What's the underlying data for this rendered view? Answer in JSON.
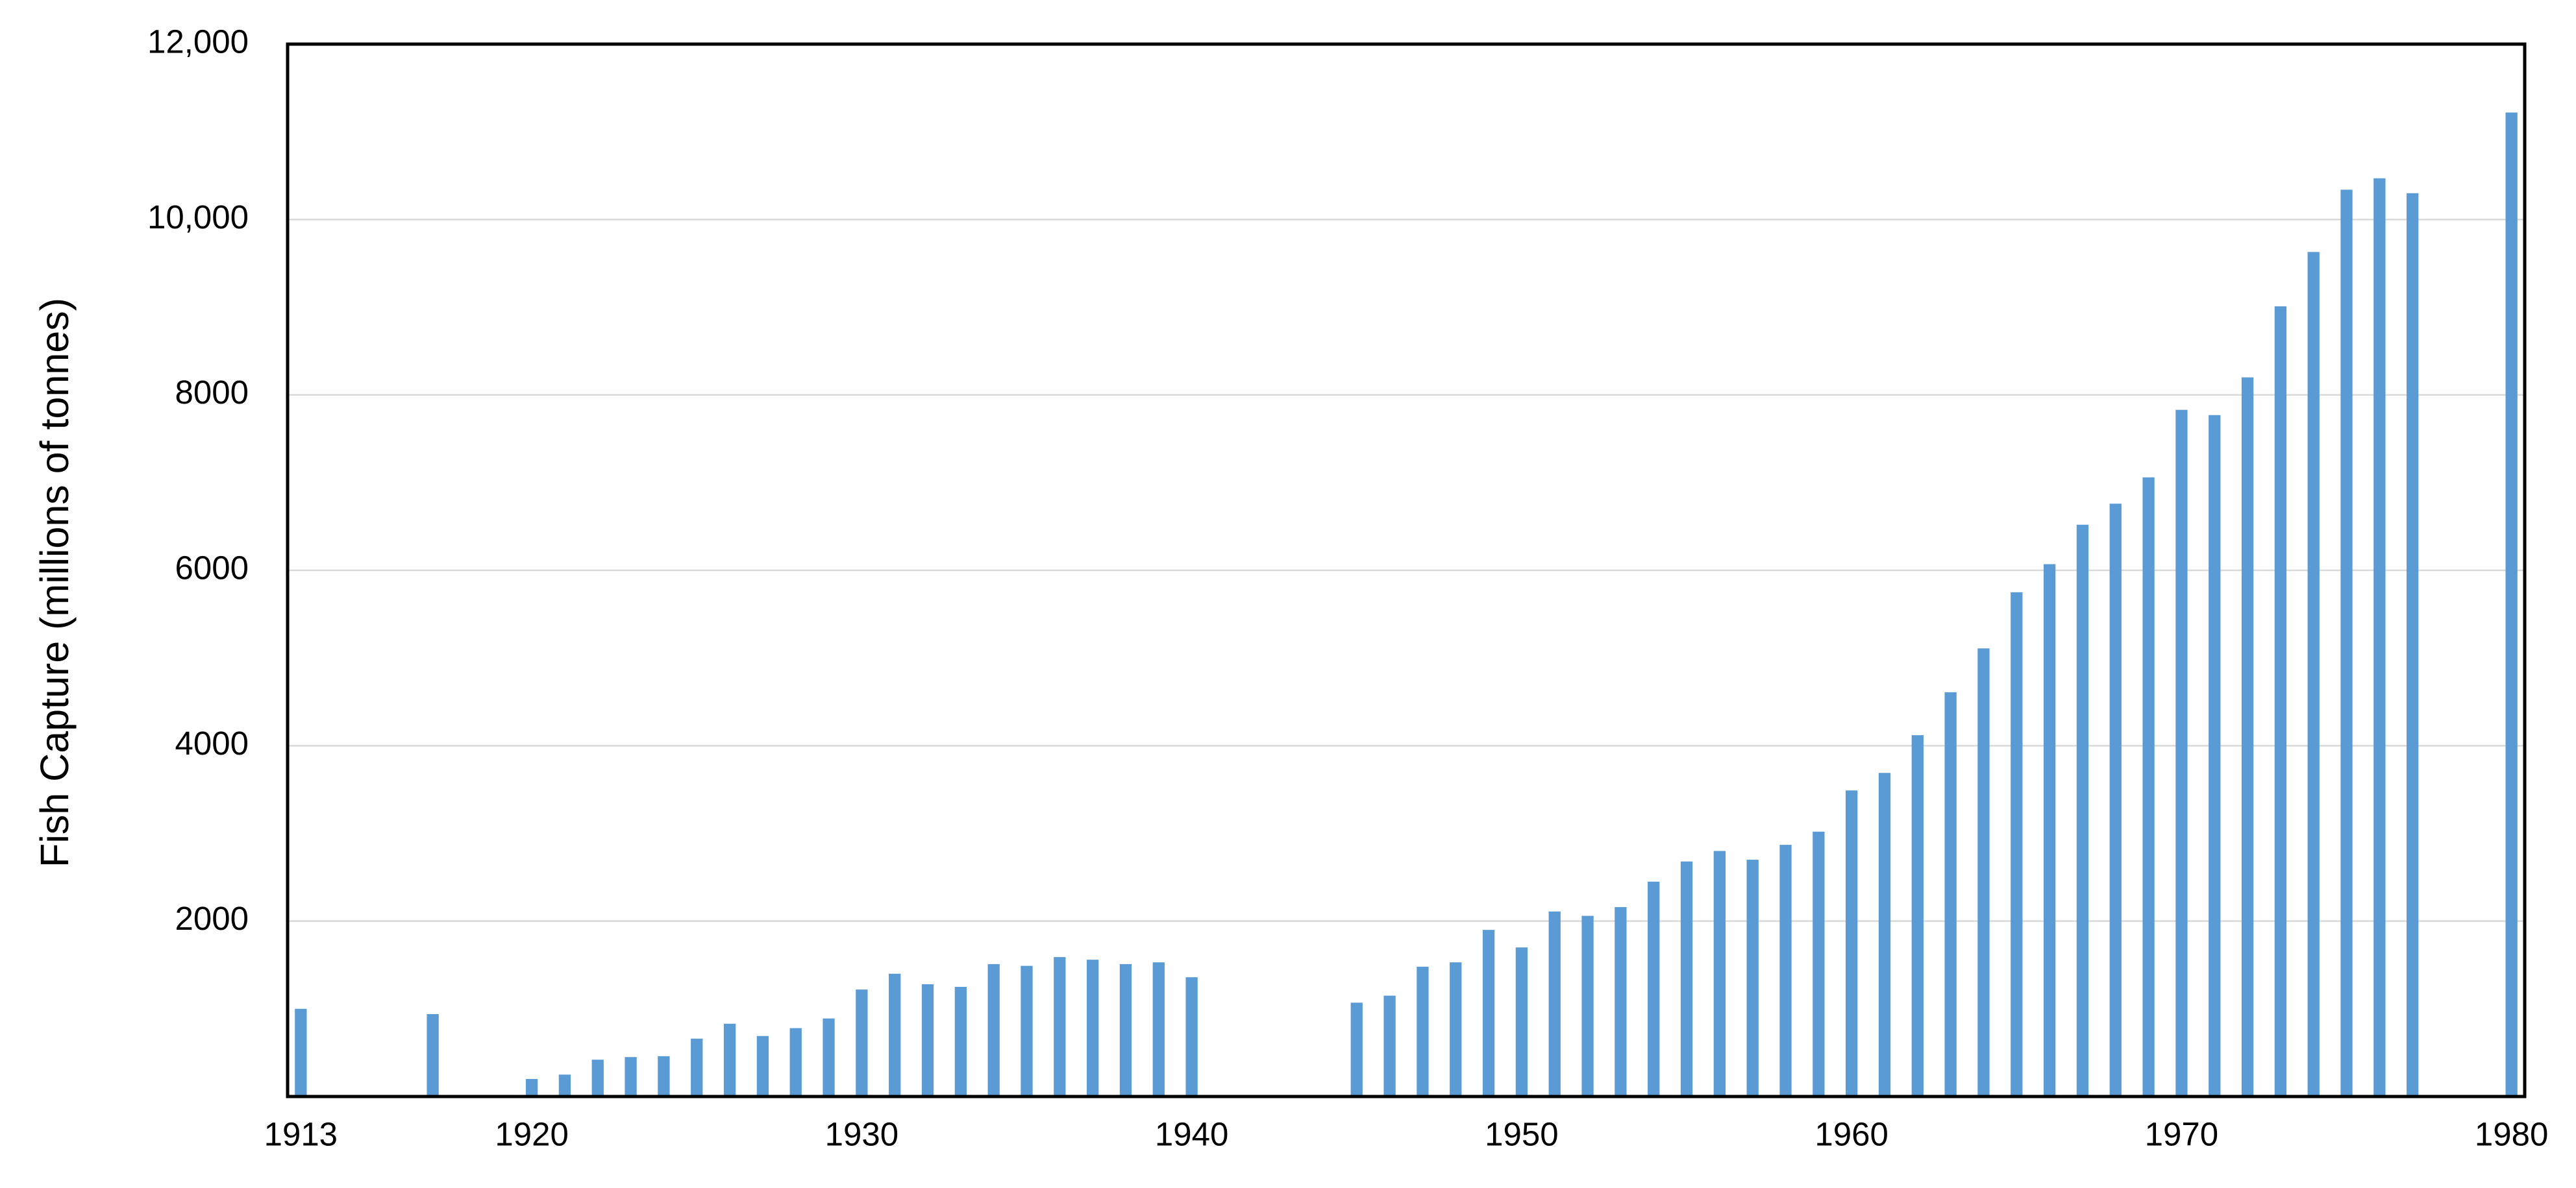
{
  "chart_data": {
    "type": "bar",
    "ylabel": "Fish Capture (millions of tonnes)",
    "x": [
      1913,
      1917,
      1920,
      1921,
      1922,
      1923,
      1924,
      1925,
      1926,
      1927,
      1928,
      1929,
      1930,
      1931,
      1932,
      1933,
      1934,
      1935,
      1936,
      1937,
      1938,
      1939,
      1940,
      1945,
      1946,
      1947,
      1948,
      1949,
      1950,
      1951,
      1952,
      1953,
      1954,
      1955,
      1956,
      1957,
      1958,
      1959,
      1960,
      1961,
      1962,
      1963,
      1964,
      1965,
      1966,
      1967,
      1968,
      1969,
      1970,
      1971,
      1972,
      1973,
      1974,
      1975,
      1976,
      1977,
      1980
    ],
    "values": [
      1000,
      940,
      200,
      250,
      420,
      450,
      460,
      660,
      830,
      690,
      780,
      890,
      1220,
      1400,
      1280,
      1250,
      1510,
      1490,
      1590,
      1560,
      1510,
      1530,
      1360,
      1070,
      1150,
      1480,
      1530,
      1900,
      1700,
      2110,
      2060,
      2160,
      2450,
      2680,
      2800,
      2700,
      2870,
      3020,
      3490,
      3690,
      4120,
      4610,
      5110,
      5750,
      6070,
      6520,
      6760,
      7060,
      7830,
      7770,
      8200,
      9010,
      9630,
      10340,
      10470,
      10300,
      11220
    ],
    "color": "#5b9bd5",
    "xlim": [
      1912.6,
      1980.4
    ],
    "xticks": [
      1913,
      1920,
      1930,
      1940,
      1950,
      1960,
      1970,
      1980
    ],
    "ylim": [
      0,
      12000
    ],
    "yticks": [
      2000,
      4000,
      6000,
      8000,
      {
        "value": 10000,
        "label": "10,000"
      },
      {
        "value": 12000,
        "label": "12,000"
      }
    ],
    "grid": true
  }
}
